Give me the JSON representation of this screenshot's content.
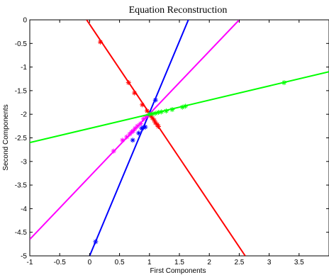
{
  "chart_data": {
    "type": "line",
    "title": "Equation Reconstruction",
    "xlabel": "First Components",
    "ylabel": "Second Components",
    "xlim": [
      -1,
      4
    ],
    "ylim": [
      -5,
      0
    ],
    "xticks": [
      -1,
      -0.5,
      0,
      0.5,
      1,
      1.5,
      2,
      2.5,
      3,
      3.5
    ],
    "yticks": [
      0,
      -0.5,
      -1,
      -1.5,
      -2,
      -2.5,
      -3,
      -3.5,
      -4,
      -4.5,
      -5
    ],
    "grid": false,
    "legend": "none",
    "series": [
      {
        "color": "#ff0000",
        "line": [
          [
            -0.05,
            0
          ],
          [
            2.6,
            -5
          ]
        ],
        "points": [
          [
            0.18,
            -0.47
          ],
          [
            0.65,
            -1.33
          ],
          [
            0.75,
            -1.55
          ],
          [
            0.88,
            -1.8
          ],
          [
            0.96,
            -1.93
          ],
          [
            1.02,
            -2.03
          ],
          [
            1.05,
            -2.08
          ],
          [
            1.08,
            -2.13
          ],
          [
            1.1,
            -2.18
          ],
          [
            1.13,
            -2.22
          ],
          [
            1.15,
            -2.26
          ]
        ]
      },
      {
        "color": "#0000ff",
        "line": [
          [
            0.0,
            -5
          ],
          [
            1.65,
            0
          ]
        ],
        "points": [
          [
            0.1,
            -4.7
          ],
          [
            0.72,
            -2.55
          ],
          [
            0.82,
            -2.4
          ],
          [
            0.87,
            -2.3
          ],
          [
            0.9,
            -2.28
          ],
          [
            0.93,
            -2.27
          ],
          [
            1.1,
            -1.7
          ]
        ]
      },
      {
        "color": "#ff00ff",
        "line": [
          [
            -1,
            -4.65
          ],
          [
            2.5,
            0
          ]
        ],
        "points": [
          [
            0.4,
            -2.78
          ],
          [
            0.55,
            -2.55
          ],
          [
            0.62,
            -2.48
          ],
          [
            0.67,
            -2.42
          ],
          [
            0.7,
            -2.38
          ],
          [
            0.73,
            -2.35
          ],
          [
            0.76,
            -2.3
          ],
          [
            0.8,
            -2.25
          ],
          [
            0.85,
            -2.2
          ],
          [
            0.9,
            -2.1
          ],
          [
            0.95,
            -2.05
          ]
        ]
      },
      {
        "color": "#00ff00",
        "line": [
          [
            -1,
            -2.6
          ],
          [
            4,
            -1.1
          ]
        ],
        "points": [
          [
            1.0,
            -2.0
          ],
          [
            1.05,
            -1.99
          ],
          [
            1.1,
            -1.98
          ],
          [
            1.15,
            -1.96
          ],
          [
            1.2,
            -1.95
          ],
          [
            1.28,
            -1.93
          ],
          [
            1.38,
            -1.9
          ],
          [
            1.55,
            -1.85
          ],
          [
            1.6,
            -1.83
          ],
          [
            3.25,
            -1.33
          ]
        ]
      }
    ]
  }
}
